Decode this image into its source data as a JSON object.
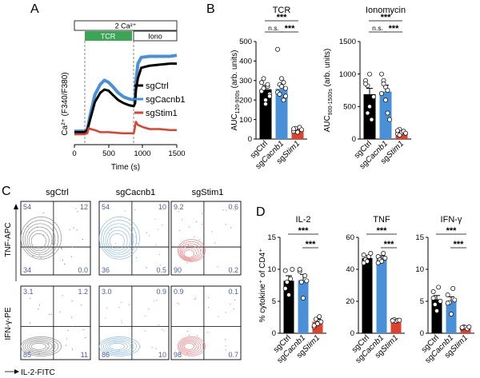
{
  "figure": {
    "panel_labels": {
      "a": "A",
      "b": "B",
      "c": "C",
      "d": "D"
    }
  },
  "panel_a": {
    "ca_bar": "2 Ca²⁺",
    "tcr_bar": "TCR",
    "iono_bar": "Iono",
    "ylabel": "Ca²⁺ (F340/F380)",
    "xlabel": "Time (s)",
    "x_ticks": [
      "0",
      "500",
      "1000",
      "1500"
    ],
    "legend": [
      {
        "label": "sgCtrl",
        "color": "#000000"
      },
      {
        "label": "sgCacnb1",
        "color": "#4a90d9"
      },
      {
        "label": "sgStim1",
        "color": "#e0412d"
      }
    ],
    "colors": {
      "tcr": "#3aa655",
      "ctrl": "#000000",
      "cacnb1": "#4a90d9",
      "stim1": "#e0412d"
    }
  },
  "chart_data": [
    {
      "type": "line",
      "title": "",
      "xlabel": "Time (s)",
      "ylabel": "Ca²⁺ (F340/F380)",
      "xlim": [
        0,
        1500
      ],
      "ylim": [
        0,
        1
      ],
      "tcr_start": 200,
      "iono_start": 900,
      "series": [
        {
          "name": "sgCtrl",
          "x": [
            0,
            150,
            190,
            230,
            300,
            380,
            440,
            500,
            560,
            640,
            720,
            800,
            870,
            890,
            900,
            930,
            980,
            1100,
            1250,
            1400,
            1500
          ],
          "values": [
            0.12,
            0.12,
            0.14,
            0.24,
            0.41,
            0.5,
            0.53,
            0.52,
            0.48,
            0.43,
            0.4,
            0.38,
            0.37,
            0.4,
            0.52,
            0.64,
            0.74,
            0.76,
            0.77,
            0.78,
            0.78
          ]
        },
        {
          "name": "sgCacnb1",
          "x": [
            0,
            150,
            190,
            230,
            300,
            380,
            440,
            500,
            560,
            640,
            720,
            800,
            870,
            890,
            900,
            930,
            980,
            1100,
            1250,
            1400,
            1500
          ],
          "values": [
            0.13,
            0.13,
            0.15,
            0.28,
            0.48,
            0.58,
            0.62,
            0.6,
            0.56,
            0.5,
            0.46,
            0.44,
            0.43,
            0.46,
            0.6,
            0.78,
            0.84,
            0.85,
            0.85,
            0.85,
            0.86
          ]
        },
        {
          "name": "sgStim1",
          "x": [
            0,
            150,
            190,
            210,
            240,
            300,
            380,
            500,
            700,
            870,
            880,
            900,
            930,
            1000,
            1100,
            1250,
            1400,
            1500
          ],
          "values": [
            0.1,
            0.1,
            0.11,
            0.16,
            0.15,
            0.14,
            0.12,
            0.12,
            0.11,
            0.11,
            0.14,
            0.22,
            0.19,
            0.17,
            0.15,
            0.15,
            0.14,
            0.14
          ]
        }
      ]
    },
    {
      "type": "bar",
      "title": "TCR",
      "ylabel": "AUC120-900s (arb. units)",
      "ylabel_main": "AUC",
      "ylabel_sub": "120-900s",
      "ylabel_tail": " (arb. units)",
      "ylim": [
        0,
        500
      ],
      "y_ticks": [
        "0",
        "100",
        "200",
        "300",
        "400",
        "500"
      ],
      "categories": [
        "sgCtrl",
        "sgCacnb1",
        "sgStim1"
      ],
      "values": [
        255,
        258,
        48
      ],
      "errors": [
        20,
        25,
        5
      ],
      "colors": [
        "#000000",
        "#4a90d9",
        "#e0412d"
      ],
      "points": [
        [
          245,
          310,
          200,
          270,
          230,
          290,
          260,
          180,
          280,
          220
        ],
        [
          240,
          280,
          310,
          200,
          260,
          460,
          230,
          270,
          290,
          220
        ],
        [
          40,
          55,
          35,
          60,
          48,
          52
        ]
      ],
      "sig": [
        {
          "from": 0,
          "to": 2,
          "label": "***"
        },
        {
          "from": 0,
          "to": 1,
          "label": "n.s."
        },
        {
          "from": 1,
          "to": 2,
          "label": "***"
        }
      ]
    },
    {
      "type": "bar",
      "title": "Ionomycin",
      "ylabel": "AUC900-1500s (arb. units)",
      "ylabel_main": "AUC",
      "ylabel_sub": "900-1500s",
      "ylabel_tail": " (arb. units)",
      "ylim": [
        0,
        1500
      ],
      "y_ticks": [
        "0",
        "500",
        "1000",
        "1500"
      ],
      "categories": [
        "sgCtrl",
        "sgCacnb1",
        "sgStim1"
      ],
      "values": [
        690,
        730,
        110
      ],
      "errors": [
        90,
        100,
        15
      ],
      "colors": [
        "#000000",
        "#4a90d9",
        "#e0412d"
      ],
      "points": [
        [
          900,
          820,
          500,
          300,
          650,
          850,
          400,
          1000
        ],
        [
          1000,
          900,
          800,
          400,
          300,
          700,
          850,
          600,
          750
        ],
        [
          80,
          150,
          100,
          120,
          90,
          130,
          60
        ]
      ],
      "sig": [
        {
          "from": 0,
          "to": 2,
          "label": "***"
        },
        {
          "from": 0,
          "to": 1,
          "label": "n.s."
        },
        {
          "from": 1,
          "to": 2,
          "label": "***"
        }
      ]
    },
    {
      "type": "bar",
      "title": "IL-2",
      "ylabel": "% cytokine⁺ of CD4⁺",
      "ylim": [
        0,
        15
      ],
      "y_ticks": [
        "0",
        "5",
        "10",
        "15"
      ],
      "categories": [
        "sgCtrl",
        "sgCacnb1",
        "sgStim1"
      ],
      "values": [
        8.2,
        8.3,
        1.8
      ],
      "errors": [
        0.8,
        0.9,
        0.4
      ],
      "colors": [
        "#000000",
        "#4a90d9",
        "#e0412d"
      ],
      "points": [
        [
          9.8,
          8.0,
          6.0,
          8.5,
          10.0,
          7.0
        ],
        [
          9.7,
          8.0,
          5.5,
          9.0,
          8.2,
          10.0
        ],
        [
          1.0,
          2.2,
          1.5,
          2.6,
          1.8,
          1.2
        ]
      ],
      "sig": [
        {
          "from": 0,
          "to": 2,
          "label": "***"
        },
        {
          "from": 1,
          "to": 2,
          "label": "***"
        }
      ]
    },
    {
      "type": "bar",
      "title": "TNF",
      "ylabel": "",
      "ylim": [
        0,
        60
      ],
      "y_ticks": [
        "0",
        "20",
        "40",
        "60"
      ],
      "categories": [
        "sgCtrl",
        "sgCacnb1",
        "sgStim1"
      ],
      "values": [
        47,
        47,
        8
      ],
      "errors": [
        1.5,
        1.5,
        0.5
      ],
      "colors": [
        "#000000",
        "#4a90d9",
        "#e0412d"
      ],
      "points": [
        [
          49,
          46,
          45,
          48,
          50,
          44
        ],
        [
          48,
          46,
          45,
          50,
          47,
          44
        ],
        [
          8,
          8.5,
          7.5,
          8,
          8.2,
          7.8
        ]
      ],
      "sig": [
        {
          "from": 0,
          "to": 2,
          "label": "***"
        },
        {
          "from": 1,
          "to": 2,
          "label": "***"
        }
      ]
    },
    {
      "type": "bar",
      "title": "IFN-γ",
      "ylabel": "",
      "ylim": [
        0,
        15
      ],
      "y_ticks": [
        "0",
        "5",
        "10",
        "15"
      ],
      "categories": [
        "sgCtrl",
        "sgCacnb1",
        "sgStim1"
      ],
      "values": [
        5.3,
        5.1,
        0.9
      ],
      "errors": [
        0.6,
        0.6,
        0.1
      ],
      "colors": [
        "#000000",
        "#4a90d9",
        "#e0412d"
      ],
      "points": [
        [
          6.5,
          4.5,
          3.5,
          7.2,
          5.0,
          5.5
        ],
        [
          6.0,
          4.8,
          3.0,
          7.0,
          5.2,
          4.7
        ],
        [
          0.8,
          1.0,
          0.9,
          0.7,
          1.0,
          0.9
        ]
      ],
      "sig": [
        {
          "from": 0,
          "to": 2,
          "label": "***"
        },
        {
          "from": 1,
          "to": 2,
          "label": "***"
        }
      ]
    }
  ],
  "panel_c": {
    "y_axis_top": "TNF-APC",
    "y_axis_bottom": "IFN-γ-PE",
    "x_axis": "IL-2-FITC",
    "columns": [
      {
        "title": "sgCtrl",
        "color": "#808080",
        "top": {
          "ul": "54",
          "ur": "12",
          "ll": "34",
          "lr": "0.0"
        },
        "bottom": {
          "ul": "3.1",
          "ur": "1.2",
          "ll": "85",
          "lr": "11"
        }
      },
      {
        "title": "sgCacnb1",
        "color": "#7fb1df",
        "top": {
          "ul": "54",
          "ur": "10",
          "ll": "36",
          "lr": "0.5"
        },
        "bottom": {
          "ul": "3.0",
          "ur": "0.9",
          "ll": "86",
          "lr": "10"
        }
      },
      {
        "title": "sgStim1",
        "color": "#e8737a",
        "top": {
          "ul": "9.2",
          "ur": "0.6",
          "ll": "90",
          "lr": "0.2"
        },
        "bottom": {
          "ul": "0.9",
          "ur": "0.1",
          "ll": "98",
          "lr": "0.7"
        }
      }
    ],
    "quadrant_text_color": "#4a5fa8"
  }
}
